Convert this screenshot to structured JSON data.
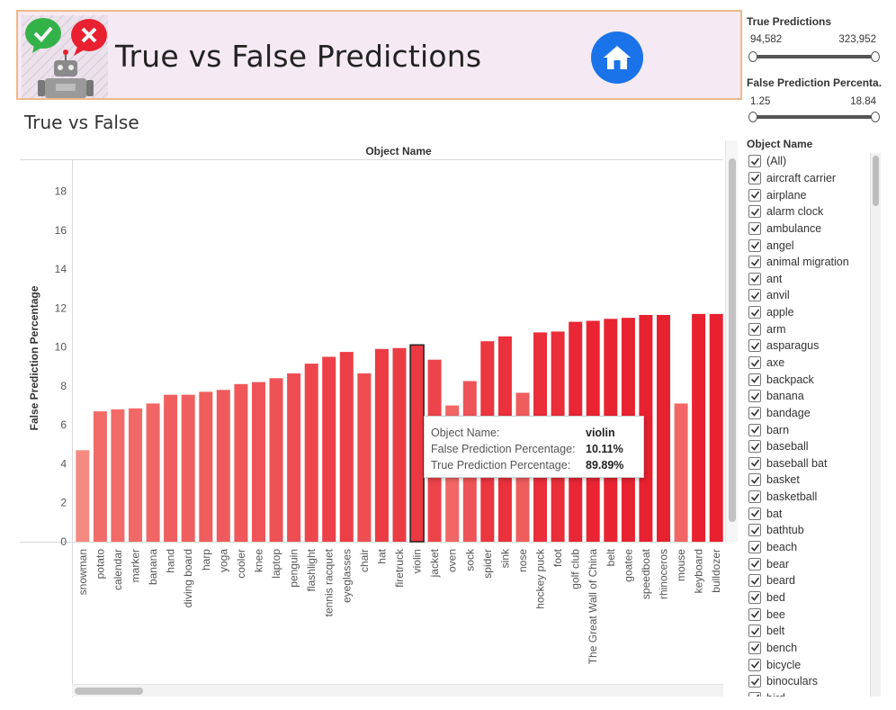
{
  "header": {
    "title": "True vs False Predictions",
    "home_label": "Home"
  },
  "section_title": "True vs False",
  "colors": {
    "bar_light": "#f58a80",
    "bar_dark": "#e8202f",
    "banner_bg": "#f5eaf3",
    "banner_border": "#f0b887",
    "home_blue": "#1a73e8"
  },
  "filters": {
    "true_predictions": {
      "title": "True Predictions",
      "min": "94,582",
      "max": "323,952"
    },
    "false_pct": {
      "title": "False Prediction Percenta..",
      "min": "1.25",
      "max": "18.84"
    },
    "object_name": {
      "title": "Object Name",
      "items": [
        "(All)",
        "aircraft carrier",
        "airplane",
        "alarm clock",
        "ambulance",
        "angel",
        "animal migration",
        "ant",
        "anvil",
        "apple",
        "arm",
        "asparagus",
        "axe",
        "backpack",
        "banana",
        "bandage",
        "barn",
        "baseball",
        "baseball bat",
        "basket",
        "basketball",
        "bat",
        "bathtub",
        "beach",
        "bear",
        "beard",
        "bed",
        "bee",
        "belt",
        "bench",
        "bicycle",
        "binoculars",
        "bird"
      ]
    }
  },
  "tooltip": {
    "rows": [
      {
        "k": "Object Name:",
        "v": "violin"
      },
      {
        "k": "False Prediction Percentage:",
        "v": "10.11%"
      },
      {
        "k": "True Prediction Percentage:",
        "v": "89.89%"
      }
    ]
  },
  "chart_data": {
    "type": "bar",
    "title": "Object Name",
    "xlabel": "",
    "ylabel": "False Prediction Percentage",
    "ylim": [
      0,
      19.6
    ],
    "yticks": [
      0,
      2,
      4,
      6,
      8,
      10,
      12,
      14,
      16,
      18
    ],
    "highlighted": "violin",
    "categories": [
      "snowman",
      "potato",
      "calendar",
      "marker",
      "banana",
      "hand",
      "diving board",
      "harp",
      "yoga",
      "cooler",
      "knee",
      "laptop",
      "penguin",
      "flashlight",
      "tennis racquet",
      "eyeglasses",
      "chair",
      "hat",
      "firetruck",
      "violin",
      "jacket",
      "oven",
      "sock",
      "spider",
      "sink",
      "nose",
      "hockey puck",
      "foot",
      "golf club",
      "The Great Wall of China",
      "belt",
      "goatee",
      "speedboat",
      "rhinoceros",
      "mouse",
      "keyboard",
      "bulldozer"
    ],
    "values": [
      4.7,
      6.7,
      6.8,
      6.85,
      7.1,
      7.55,
      7.55,
      7.7,
      7.8,
      8.1,
      8.2,
      8.4,
      8.65,
      9.15,
      9.5,
      9.75,
      8.65,
      9.9,
      9.95,
      10.11,
      9.35,
      7.0,
      8.25,
      10.3,
      10.55,
      7.65,
      10.75,
      10.8,
      11.3,
      11.35,
      11.45,
      11.5,
      11.65,
      11.65,
      7.1,
      11.7,
      11.7
    ]
  }
}
